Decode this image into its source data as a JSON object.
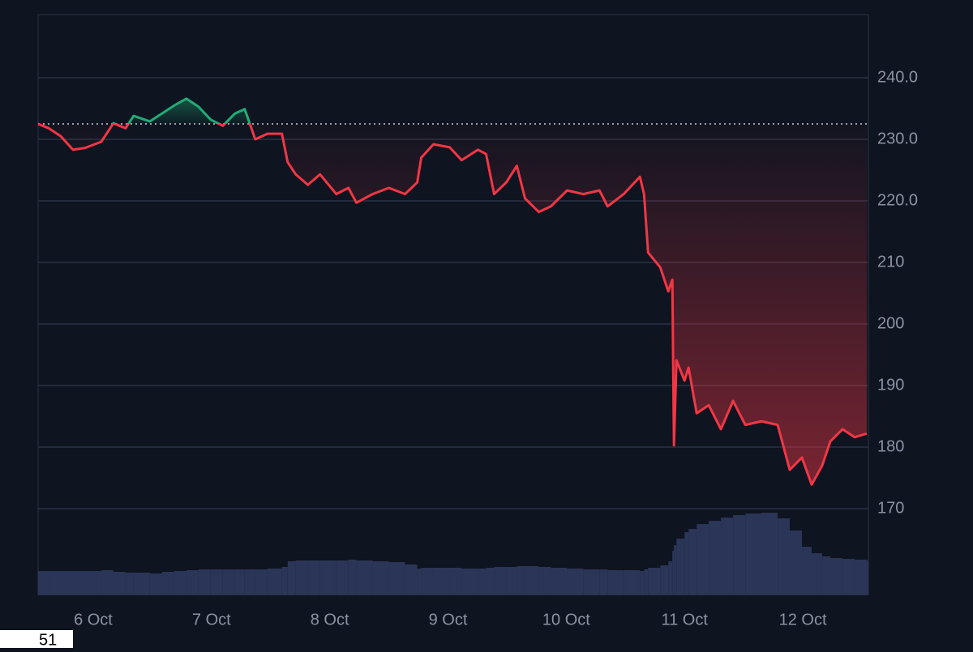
{
  "chart_data": {
    "type": "baseline",
    "x": [
      5.534,
      5.623,
      5.726,
      5.829,
      5.932,
      6.068,
      6.171,
      6.274,
      6.342,
      6.479,
      6.582,
      6.685,
      6.788,
      6.89,
      6.993,
      7.096,
      7.199,
      7.281,
      7.37,
      7.473,
      7.596,
      7.644,
      7.712,
      7.815,
      7.918,
      8.055,
      8.158,
      8.226,
      8.363,
      8.5,
      8.637,
      8.74,
      8.774,
      8.877,
      9.014,
      9.116,
      9.253,
      9.322,
      9.39,
      9.493,
      9.582,
      9.651,
      9.767,
      9.87,
      10.007,
      10.144,
      10.281,
      10.349,
      10.486,
      10.623,
      10.658,
      10.692,
      10.795,
      10.863,
      10.897,
      10.911,
      10.932,
      11.0,
      11.034,
      11.103,
      11.205,
      11.308,
      11.411,
      11.514,
      11.651,
      11.788,
      11.89,
      11.993,
      12.075,
      12.164,
      12.233,
      12.336,
      12.438,
      12.541
    ],
    "values": [
      232.5,
      231.8,
      230.5,
      228.3,
      228.6,
      229.6,
      232.6,
      231.8,
      233.8,
      232.9,
      234.2,
      235.5,
      236.6,
      235.3,
      233.2,
      232.2,
      234.2,
      234.9,
      230,
      230.9,
      230.9,
      226.3,
      224.3,
      222.6,
      224.3,
      221.1,
      222.1,
      219.7,
      221.1,
      222.1,
      221.1,
      223,
      227,
      229.2,
      228.7,
      226.6,
      228.3,
      227.6,
      221.1,
      223,
      225.7,
      220.4,
      218.2,
      219.1,
      221.7,
      221.1,
      221.7,
      219.1,
      221.1,
      223.9,
      221.1,
      211.6,
      209.2,
      205.3,
      207.2,
      180.3,
      194.1,
      190.8,
      192.9,
      185.5,
      186.8,
      182.9,
      187.5,
      183.6,
      184.2,
      183.6,
      176.3,
      178.3,
      173.9,
      177,
      180.9,
      182.9,
      181.6,
      182.2
    ],
    "volume": [
      30,
      30,
      30,
      30,
      30,
      31,
      29,
      28,
      28,
      27,
      29,
      30,
      31,
      32,
      32,
      32,
      32,
      32,
      32,
      33,
      35,
      42,
      43,
      43,
      43,
      43,
      44,
      43,
      42,
      41,
      38,
      33,
      34,
      34,
      34,
      33,
      33,
      34,
      35,
      35,
      36,
      36,
      35,
      34,
      33,
      32,
      32,
      31,
      31,
      30,
      32,
      34,
      37,
      42,
      55,
      62,
      70,
      78,
      82,
      88,
      92,
      96,
      99,
      101,
      102,
      95,
      80,
      60,
      52,
      48,
      46,
      45,
      44,
      43
    ],
    "baseline": 232.5,
    "up_color": "#22ab76",
    "down_color": "#f23645",
    "volume_color": "#2b3557",
    "xlim": [
      5.534,
      12.555
    ],
    "xticks": [
      {
        "value": 6,
        "label": "6 Oct"
      },
      {
        "value": 7,
        "label": "7 Oct"
      },
      {
        "value": 8,
        "label": "8 Oct"
      },
      {
        "value": 9,
        "label": "9 Oct"
      },
      {
        "value": 10,
        "label": "10 Oct"
      },
      {
        "value": 11,
        "label": "11 Oct"
      },
      {
        "value": 12,
        "label": "12 Oct"
      }
    ],
    "ylim": [
      155.92,
      250.26
    ],
    "yticks": [
      {
        "value": 240,
        "label": "240.0"
      },
      {
        "value": 230,
        "label": "230.0"
      },
      {
        "value": 220,
        "label": "220.0"
      },
      210,
      200,
      190,
      180,
      170
    ],
    "grid": true
  },
  "footer_text": "51"
}
